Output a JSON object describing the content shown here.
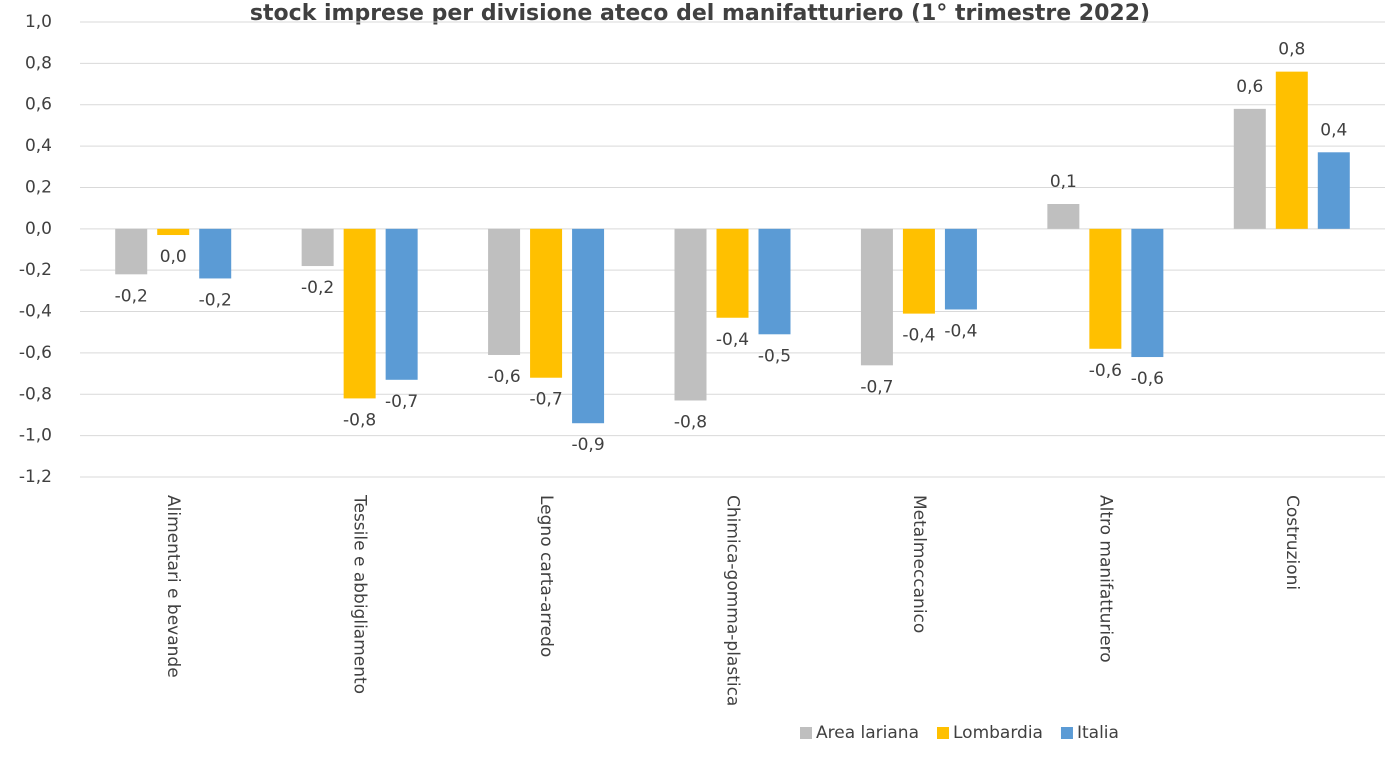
{
  "chart_data": {
    "type": "bar",
    "title": "stock imprese per divisione ateco del manifatturiero (1° trimestre 2022)",
    "categories": [
      "Alimentari e bevande",
      "Tessile e abbigliamento",
      "Legno carta-arredo",
      "Chimica-gomma-plastica",
      "Metalmeccanico",
      "Altro manifatturiero",
      "Costruzioni"
    ],
    "series": [
      {
        "name": "Area lariana",
        "color": "#bfbfbf",
        "values": [
          -0.22,
          -0.18,
          -0.61,
          -0.83,
          -0.66,
          0.12,
          0.58
        ],
        "value_labels": [
          "-0,2",
          "-0,2",
          "-0,6",
          "-0,8",
          "-0,7",
          "0,1",
          "0,6"
        ]
      },
      {
        "name": "Lombardia",
        "color": "#ffc000",
        "values": [
          -0.03,
          -0.82,
          -0.72,
          -0.43,
          -0.41,
          -0.58,
          0.76
        ],
        "value_labels": [
          "0,0",
          "-0,8",
          "-0,7",
          "-0,4",
          "-0,4",
          "-0,6",
          "0,8"
        ]
      },
      {
        "name": "Italia",
        "color": "#5b9bd5",
        "values": [
          -0.24,
          -0.73,
          -0.94,
          -0.51,
          -0.39,
          -0.62,
          0.37
        ],
        "value_labels": [
          "-0,2",
          "-0,7",
          "-0,9",
          "-0,5",
          "-0,4",
          "-0,6",
          "0,4"
        ]
      }
    ],
    "ylim": [
      -1.2,
      1.0
    ],
    "yticks": [
      {
        "value": 1.0,
        "label": "1,0"
      },
      {
        "value": 0.8,
        "label": "0,8"
      },
      {
        "value": 0.6,
        "label": "0,6"
      },
      {
        "value": 0.4,
        "label": "0,4"
      },
      {
        "value": 0.2,
        "label": "0,2"
      },
      {
        "value": 0.0,
        "label": "0,0"
      },
      {
        "value": -0.2,
        "label": "-0,2"
      },
      {
        "value": -0.4,
        "label": "-0,4"
      },
      {
        "value": -0.6,
        "label": "-0,6"
      },
      {
        "value": -0.8,
        "label": "-0,8"
      },
      {
        "value": -1.0,
        "label": "-1,0"
      },
      {
        "value": -1.2,
        "label": "-1,2"
      }
    ],
    "grid": true,
    "legend": "bottom-right"
  }
}
